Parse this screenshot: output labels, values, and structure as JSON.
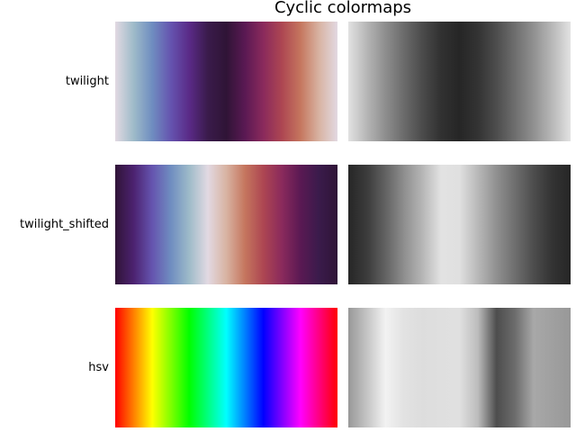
{
  "chart_data": {
    "type": "heatmap",
    "title": "Cyclic colormaps",
    "colormaps": [
      {
        "name": "twilight",
        "stops": [
          "#e2d9e2",
          "#9ebbc9",
          "#6f8dc0",
          "#6554af",
          "#5a2a87",
          "#3a1b4b",
          "#2f1436",
          "#5a1953",
          "#8a2a5c",
          "#ad4652",
          "#c5765e",
          "#d8b3a2",
          "#e2d9e2"
        ],
        "gray_stops": [
          "#e2e2e2",
          "#b6b6b6",
          "#8e8e8e",
          "#6b6b6b",
          "#4b4b4b",
          "#313131",
          "#262626",
          "#333333",
          "#4d4d4d",
          "#6e6e6e",
          "#909090",
          "#b8b8b8",
          "#e2e2e2"
        ]
      },
      {
        "name": "twilight_shifted",
        "stops": [
          "#301437",
          "#4c2270",
          "#6554af",
          "#6f8dc0",
          "#9ebbc9",
          "#e2d9e2",
          "#d8b3a2",
          "#c5765e",
          "#ad4652",
          "#8a2a5c",
          "#5a1953",
          "#3a1b4b",
          "#301437"
        ],
        "gray_stops": [
          "#262626",
          "#3b3b3b",
          "#626262",
          "#8e8e8e",
          "#b6b6b6",
          "#e2e2e2",
          "#e0e0e0",
          "#b8b8b8",
          "#909090",
          "#6e6e6e",
          "#4d4d4d",
          "#333333",
          "#262626"
        ]
      },
      {
        "name": "hsv",
        "stops": [
          "#ff0000",
          "#ff8000",
          "#ffff00",
          "#80ff00",
          "#00ff00",
          "#00ff80",
          "#00ffff",
          "#0080ff",
          "#0000ff",
          "#8000ff",
          "#ff00ff",
          "#ff0080",
          "#ff0000"
        ],
        "gray_stops": [
          "#989898",
          "#c4c4c4",
          "#f2f2f2",
          "#e2e2e2",
          "#dddddd",
          "#dfdfdf",
          "#e0e0e0",
          "#bcbcbc",
          "#4d4d4d",
          "#6c6c6c",
          "#a8a8a8",
          "#a0a0a0",
          "#989898"
        ]
      }
    ]
  }
}
